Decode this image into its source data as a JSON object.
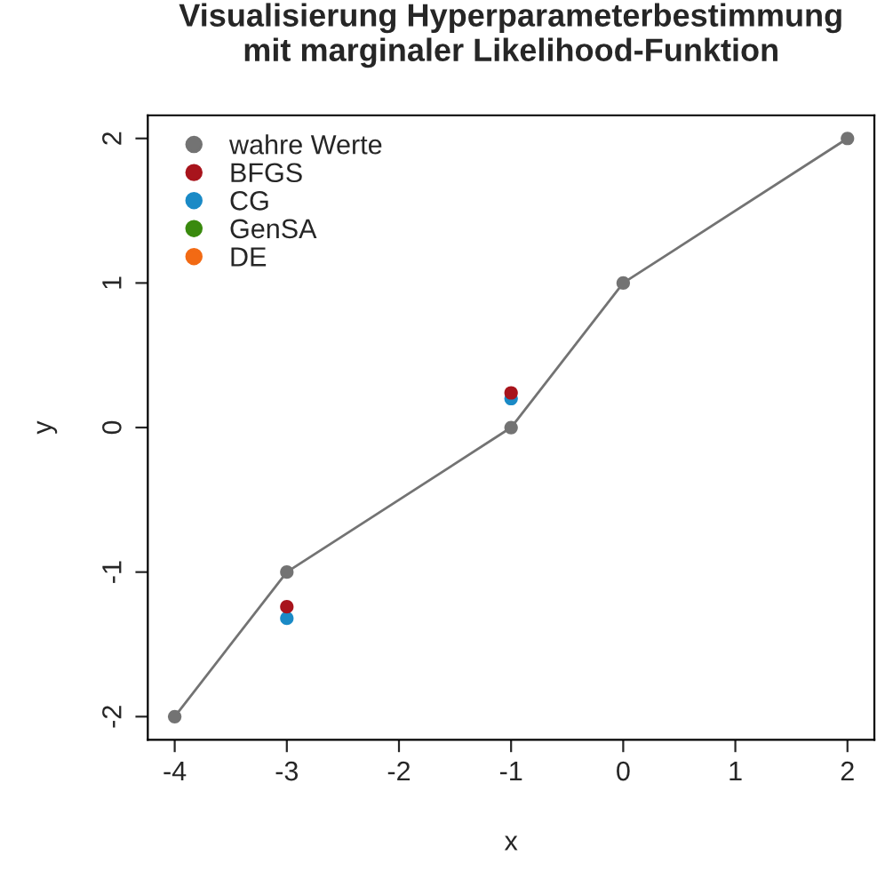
{
  "chart_data": {
    "type": "scatter",
    "title": "Visualisierung Hyperparameterbestimmung\nmit marginaler Likelihood-Funktion",
    "xlabel": "x",
    "ylabel": "y",
    "xlim": [
      -4.24,
      2.24
    ],
    "ylim": [
      -2.16,
      2.16
    ],
    "xticks": [
      -4,
      -3,
      -2,
      -1,
      0,
      1,
      2
    ],
    "yticks": [
      -2,
      -1,
      0,
      1,
      2
    ],
    "series": [
      {
        "name": "wahre Werte",
        "type": "line",
        "color": "#737373",
        "x": [
          -4,
          -3,
          -1,
          0,
          2
        ],
        "values": [
          -2,
          -1,
          0,
          1,
          2
        ]
      },
      {
        "name": "BFGS",
        "color": "#a8141c",
        "x": [
          -3,
          -1
        ],
        "values": [
          -1.24,
          0.24
        ]
      },
      {
        "name": "CG",
        "color": "#1a8ac6",
        "x": [
          -3,
          -1
        ],
        "values": [
          -1.32,
          0.2
        ]
      },
      {
        "name": "GenSA",
        "color": "#3a8a0e"
      },
      {
        "name": "DE",
        "color": "#f26a14"
      }
    ],
    "marker": "circle",
    "grid": false,
    "legend": "top left"
  }
}
